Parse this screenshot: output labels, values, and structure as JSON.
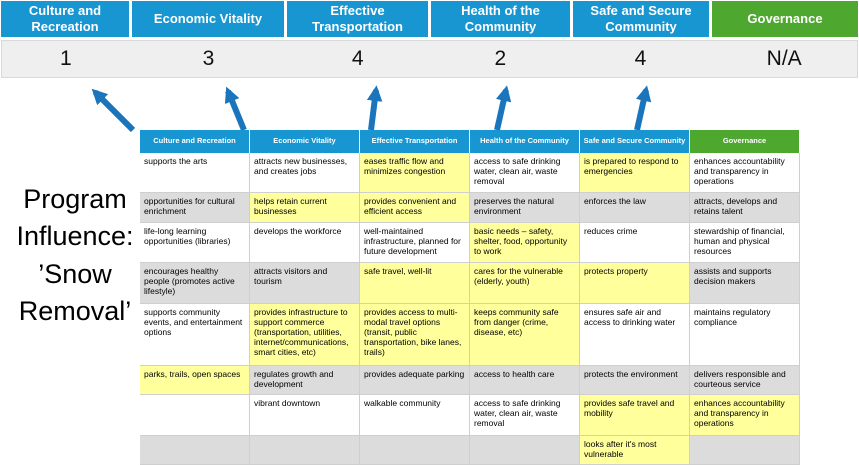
{
  "colors": {
    "header_blue": "#1796D2",
    "header_green": "#4EA72E",
    "arrow_blue": "#1B75BC",
    "highlight_yellow": "#FFFF9C",
    "score_row_bg": "#EFEFEF",
    "band_gray": "#DCDCDC"
  },
  "summary": {
    "columns": [
      {
        "label": "Culture and Recreation",
        "score": "1",
        "color": "blue"
      },
      {
        "label": "Economic Vitality",
        "score": "3",
        "color": "blue"
      },
      {
        "label": "Effective Transportation",
        "score": "4",
        "color": "blue"
      },
      {
        "label": "Health of the Community",
        "score": "2",
        "color": "blue"
      },
      {
        "label": "Safe and Secure Community",
        "score": "4",
        "color": "blue"
      },
      {
        "label": "Governance",
        "score": "N/A",
        "color": "green"
      }
    ]
  },
  "program_label": {
    "text": "Program Influence: ’Snow Removal’",
    "lines": [
      "Program",
      "Influence:",
      "’Snow",
      "Removal’"
    ]
  },
  "icons": {
    "arrow": "up-arrow"
  },
  "matrix": {
    "headers": [
      {
        "label": "Culture and Recreation",
        "color": "blue"
      },
      {
        "label": "Economic Vitality",
        "color": "blue"
      },
      {
        "label": "Effective Transportation",
        "color": "blue"
      },
      {
        "label": "Health of the Community",
        "color": "blue"
      },
      {
        "label": "Safe and Secure Community",
        "color": "blue"
      },
      {
        "label": "Governance",
        "color": "green"
      }
    ],
    "rows": [
      {
        "cells": [
          {
            "text": "supports the arts",
            "highlight": false
          },
          {
            "text": "attracts new businesses, and creates jobs",
            "highlight": false
          },
          {
            "text": "eases traffic flow and minimizes congestion",
            "highlight": true
          },
          {
            "text": "access to safe drinking water, clean air, waste removal",
            "highlight": false
          },
          {
            "text": "is prepared to respond to emergencies",
            "highlight": true
          },
          {
            "text": "enhances accountability and transparency in operations",
            "highlight": false
          }
        ]
      },
      {
        "cells": [
          {
            "text": "opportunities for cultural enrichment",
            "highlight": false
          },
          {
            "text": "helps retain current businesses",
            "highlight": true
          },
          {
            "text": "provides convenient and efficient access",
            "highlight": true
          },
          {
            "text": "preserves the natural environment",
            "highlight": false
          },
          {
            "text": "enforces the law",
            "highlight": false
          },
          {
            "text": "attracts, develops and retains talent",
            "highlight": false
          }
        ]
      },
      {
        "cells": [
          {
            "text": "life-long learning opportunities (libraries)",
            "highlight": false
          },
          {
            "text": "develops the workforce",
            "highlight": false
          },
          {
            "text": "well-maintained infrastructure, planned for future development",
            "highlight": false
          },
          {
            "text": "basic needs – safety, shelter, food, opportunity to work",
            "highlight": true
          },
          {
            "text": "reduces crime",
            "highlight": false
          },
          {
            "text": "stewardship of financial, human and physical resources",
            "highlight": false
          }
        ]
      },
      {
        "cells": [
          {
            "text": "encourages healthy people (promotes active lifestyle)",
            "highlight": false
          },
          {
            "text": "attracts visitors and tourism",
            "highlight": false
          },
          {
            "text": "safe travel, well-lit",
            "highlight": true
          },
          {
            "text": "cares for the vulnerable (elderly, youth)",
            "highlight": true
          },
          {
            "text": "protects property",
            "highlight": true
          },
          {
            "text": "assists and supports decision makers",
            "highlight": false
          }
        ]
      },
      {
        "cells": [
          {
            "text": "supports community events, and entertainment options",
            "highlight": false
          },
          {
            "text": "provides infrastructure to support commerce (transportation, utilities, internet/communications, smart cities, etc)",
            "highlight": true
          },
          {
            "text": "provides access to multi-modal travel options (transit, public transportation, bike lanes, trails)",
            "highlight": true
          },
          {
            "text": "keeps community safe from danger (crime, disease, etc)",
            "highlight": true
          },
          {
            "text": "ensures safe air and access to drinking water",
            "highlight": false
          },
          {
            "text": "maintains regulatory compliance",
            "highlight": false
          }
        ]
      },
      {
        "cells": [
          {
            "text": "parks, trails, open spaces",
            "highlight": true
          },
          {
            "text": "regulates growth and development",
            "highlight": false
          },
          {
            "text": "provides adequate parking",
            "highlight": false
          },
          {
            "text": "access to health care",
            "highlight": false
          },
          {
            "text": "protects the environment",
            "highlight": false
          },
          {
            "text": "delivers responsible and courteous service",
            "highlight": false
          }
        ]
      },
      {
        "cells": [
          {
            "text": "",
            "highlight": false
          },
          {
            "text": "vibrant downtown",
            "highlight": false
          },
          {
            "text": "walkable community",
            "highlight": false
          },
          {
            "text": "access to safe drinking water, clean air, waste removal",
            "highlight": false
          },
          {
            "text": "provides safe travel and mobility",
            "highlight": true
          },
          {
            "text": "enhances accountability and transparency in operations",
            "highlight": true
          }
        ]
      },
      {
        "cells": [
          {
            "text": "",
            "highlight": false
          },
          {
            "text": "",
            "highlight": false
          },
          {
            "text": "",
            "highlight": false
          },
          {
            "text": "",
            "highlight": false
          },
          {
            "text": "looks after it's most vulnerable",
            "highlight": true
          },
          {
            "text": "",
            "highlight": false
          }
        ]
      }
    ]
  }
}
